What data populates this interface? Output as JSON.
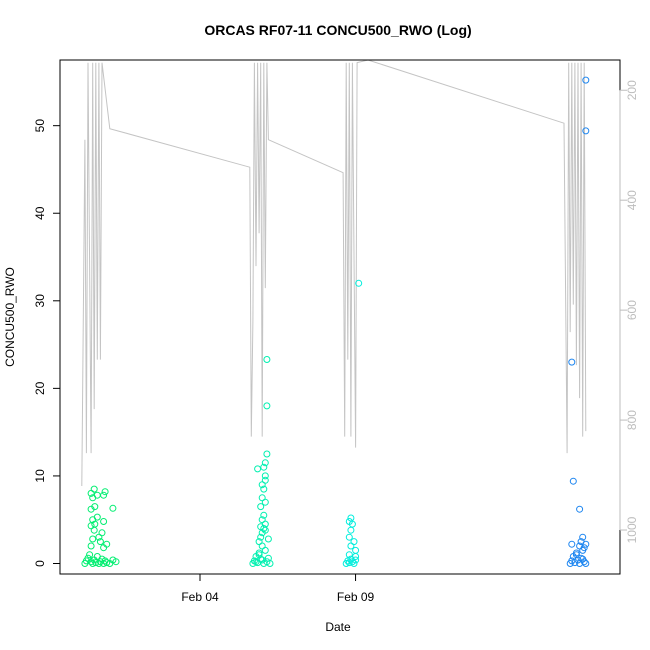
{
  "chart_data": {
    "type": "scatter",
    "title": "ORCAS RF07-11 CONCU500_RWO (Log)",
    "xlabel": "Date",
    "ylabel": "CONCU500_RWO",
    "x_ticks": [
      {
        "label": "Feb 04",
        "value": 4.0
      },
      {
        "label": "Feb 09",
        "value": 9.0
      }
    ],
    "xlim": [
      -0.5,
      17.5
    ],
    "ylim": [
      -1.2,
      57.5
    ],
    "y_ticks": [
      0,
      10,
      20,
      30,
      40,
      50
    ],
    "y2lim": [
      1080,
      145
    ],
    "y2_ticks": [
      200,
      400,
      600,
      800,
      1000
    ],
    "grid": false,
    "colors": {
      "flight1": "#00ee70",
      "flight2": "#00f0b0",
      "flight3": "#00eedd",
      "flight4": "#1e86f0",
      "altitude": "#c4c4c4"
    },
    "series": [
      {
        "color": "#00ee70",
        "points": [
          [
            0.3,
            0.0
          ],
          [
            0.35,
            0.3
          ],
          [
            0.4,
            0.6
          ],
          [
            0.45,
            1.0
          ],
          [
            0.5,
            0.2
          ],
          [
            0.55,
            0.0
          ],
          [
            0.6,
            0.4
          ],
          [
            0.65,
            0.1
          ],
          [
            0.7,
            0.8
          ],
          [
            0.75,
            0.0
          ],
          [
            0.8,
            0.2
          ],
          [
            0.85,
            0.5
          ],
          [
            0.9,
            0.0
          ],
          [
            0.95,
            0.3
          ],
          [
            1.0,
            0.1
          ],
          [
            1.1,
            0.0
          ],
          [
            1.2,
            0.4
          ],
          [
            1.3,
            0.2
          ],
          [
            0.5,
            2.0
          ],
          [
            0.55,
            2.8
          ],
          [
            0.6,
            3.8
          ],
          [
            0.5,
            4.3
          ],
          [
            0.62,
            4.5
          ],
          [
            0.55,
            5.0
          ],
          [
            0.7,
            5.3
          ],
          [
            0.5,
            6.2
          ],
          [
            0.62,
            6.5
          ],
          [
            0.55,
            7.5
          ],
          [
            0.7,
            7.8
          ],
          [
            0.5,
            8.0
          ],
          [
            0.6,
            8.5
          ],
          [
            0.9,
            7.8
          ],
          [
            0.95,
            8.2
          ],
          [
            1.2,
            6.3
          ],
          [
            0.9,
            1.8
          ],
          [
            1.0,
            2.2
          ],
          [
            0.85,
            3.5
          ],
          [
            0.9,
            4.8
          ],
          [
            0.75,
            3.0
          ],
          [
            0.8,
            2.5
          ]
        ]
      },
      {
        "color": "#00f0b0",
        "points": [
          [
            5.7,
            0.0
          ],
          [
            5.75,
            0.3
          ],
          [
            5.8,
            0.8
          ],
          [
            5.85,
            0.1
          ],
          [
            5.9,
            1.2
          ],
          [
            5.95,
            0.5
          ],
          [
            6.0,
            2.0
          ],
          [
            6.05,
            0.0
          ],
          [
            6.1,
            1.5
          ],
          [
            6.15,
            0.2
          ],
          [
            6.2,
            0.6
          ],
          [
            6.25,
            0.0
          ],
          [
            5.9,
            2.5
          ],
          [
            5.95,
            3.0
          ],
          [
            6.0,
            3.5
          ],
          [
            6.05,
            4.0
          ],
          [
            6.1,
            4.5
          ],
          [
            6.0,
            5.0
          ],
          [
            6.05,
            5.5
          ],
          [
            5.95,
            6.5
          ],
          [
            6.1,
            7.0
          ],
          [
            6.0,
            7.5
          ],
          [
            6.05,
            8.5
          ],
          [
            6.1,
            9.5
          ],
          [
            6.0,
            9.0
          ],
          [
            6.1,
            10.0
          ],
          [
            6.05,
            11.0
          ],
          [
            5.85,
            10.8
          ],
          [
            6.1,
            11.5
          ],
          [
            6.15,
            12.5
          ],
          [
            6.15,
            18.0
          ],
          [
            6.15,
            23.3
          ],
          [
            5.9,
            1.0
          ],
          [
            6.2,
            2.8
          ],
          [
            6.0,
            0.4
          ],
          [
            5.8,
            0.2
          ],
          [
            6.1,
            3.8
          ],
          [
            5.95,
            4.2
          ]
        ]
      },
      {
        "color": "#00eedd",
        "points": [
          [
            8.7,
            0.0
          ],
          [
            8.75,
            0.3
          ],
          [
            8.8,
            0.1
          ],
          [
            8.85,
            0.5
          ],
          [
            8.9,
            0.2
          ],
          [
            8.95,
            0.0
          ],
          [
            9.0,
            0.4
          ],
          [
            8.8,
            1.0
          ],
          [
            8.85,
            2.0
          ],
          [
            8.8,
            3.0
          ],
          [
            8.85,
            3.8
          ],
          [
            8.9,
            4.5
          ],
          [
            8.8,
            4.8
          ],
          [
            8.85,
            5.2
          ],
          [
            8.95,
            2.5
          ],
          [
            9.0,
            1.5
          ],
          [
            9.0,
            0.8
          ],
          [
            9.1,
            32.0
          ]
        ]
      },
      {
        "color": "#1e86f0",
        "points": [
          [
            15.9,
            0.0
          ],
          [
            15.95,
            0.3
          ],
          [
            16.0,
            0.8
          ],
          [
            16.05,
            0.1
          ],
          [
            16.1,
            1.2
          ],
          [
            16.15,
            0.4
          ],
          [
            16.2,
            0.0
          ],
          [
            16.25,
            0.6
          ],
          [
            16.3,
            1.5
          ],
          [
            16.35,
            0.2
          ],
          [
            16.4,
            0.0
          ],
          [
            16.2,
            2.0
          ],
          [
            16.25,
            2.5
          ],
          [
            16.3,
            3.0
          ],
          [
            16.35,
            1.8
          ],
          [
            16.4,
            2.2
          ],
          [
            16.1,
            1.0
          ],
          [
            16.3,
            0.5
          ],
          [
            15.95,
            2.2
          ],
          [
            16.2,
            6.2
          ],
          [
            16.0,
            9.4
          ],
          [
            15.95,
            23.0
          ],
          [
            16.4,
            49.4
          ],
          [
            16.4,
            55.2
          ]
        ]
      }
    ],
    "altitude": [
      [
        0.2,
        920
      ],
      [
        0.3,
        290
      ],
      [
        0.35,
        860
      ],
      [
        0.4,
        150
      ],
      [
        0.5,
        860
      ],
      [
        0.55,
        150
      ],
      [
        0.6,
        780
      ],
      [
        0.65,
        150
      ],
      [
        0.7,
        690
      ],
      [
        0.75,
        150
      ],
      [
        0.8,
        690
      ],
      [
        0.85,
        150
      ],
      [
        1.1,
        270
      ],
      [
        5.6,
        340
      ],
      [
        5.65,
        830
      ],
      [
        5.7,
        620
      ],
      [
        5.75,
        150
      ],
      [
        5.8,
        520
      ],
      [
        5.85,
        150
      ],
      [
        5.9,
        460
      ],
      [
        5.95,
        150
      ],
      [
        6.0,
        830
      ],
      [
        6.05,
        150
      ],
      [
        6.1,
        560
      ],
      [
        6.15,
        150
      ],
      [
        6.2,
        290
      ],
      [
        8.6,
        350
      ],
      [
        8.65,
        830
      ],
      [
        8.7,
        150
      ],
      [
        8.75,
        690
      ],
      [
        8.8,
        150
      ],
      [
        8.85,
        830
      ],
      [
        8.9,
        150
      ],
      [
        9.0,
        850
      ],
      [
        9.05,
        150
      ],
      [
        9.4,
        140
      ],
      [
        15.7,
        260
      ],
      [
        15.8,
        860
      ],
      [
        15.85,
        150
      ],
      [
        15.9,
        640
      ],
      [
        15.95,
        150
      ],
      [
        16.0,
        590
      ],
      [
        16.05,
        150
      ],
      [
        16.1,
        700
      ],
      [
        16.15,
        150
      ],
      [
        16.2,
        760
      ],
      [
        16.25,
        150
      ],
      [
        16.3,
        830
      ],
      [
        16.35,
        150
      ],
      [
        16.4,
        820
      ]
    ]
  }
}
